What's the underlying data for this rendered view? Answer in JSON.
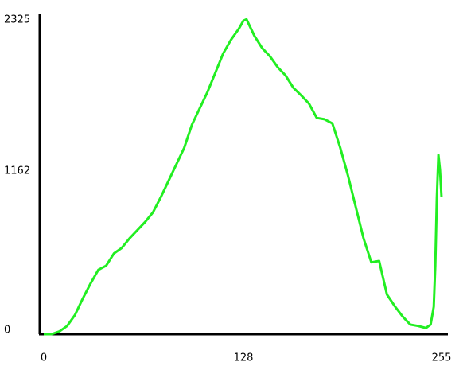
{
  "chart_data": {
    "type": "line",
    "x": [
      0,
      5,
      10,
      15,
      20,
      25,
      30,
      35,
      40,
      45,
      50,
      55,
      60,
      65,
      70,
      75,
      80,
      85,
      90,
      95,
      100,
      105,
      110,
      115,
      120,
      125,
      128,
      130,
      135,
      140,
      145,
      150,
      155,
      160,
      165,
      170,
      175,
      180,
      185,
      190,
      195,
      200,
      205,
      210,
      215,
      220,
      225,
      230,
      235,
      240,
      245,
      248,
      250,
      251,
      252,
      253,
      254,
      255
    ],
    "series": [
      {
        "color": "#22ee22",
        "values": [
          0,
          0,
          20,
          60,
          140,
          260,
          370,
          470,
          500,
          590,
          630,
          700,
          760,
          820,
          890,
          1000,
          1120,
          1240,
          1360,
          1530,
          1650,
          1770,
          1910,
          2050,
          2150,
          2230,
          2290,
          2300,
          2180,
          2090,
          2030,
          1950,
          1890,
          1800,
          1745,
          1685,
          1580,
          1570,
          1540,
          1365,
          1160,
          930,
          700,
          525,
          535,
          290,
          205,
          130,
          70,
          60,
          45,
          70,
          200,
          500,
          1000,
          1310,
          1200,
          1000
        ]
      }
    ],
    "xlim": [
      0,
      255
    ],
    "xticks": [
      0,
      128,
      255
    ],
    "ylim": [
      0,
      2325
    ],
    "yticks": [
      0,
      1162,
      2325
    ],
    "grid": false
  }
}
